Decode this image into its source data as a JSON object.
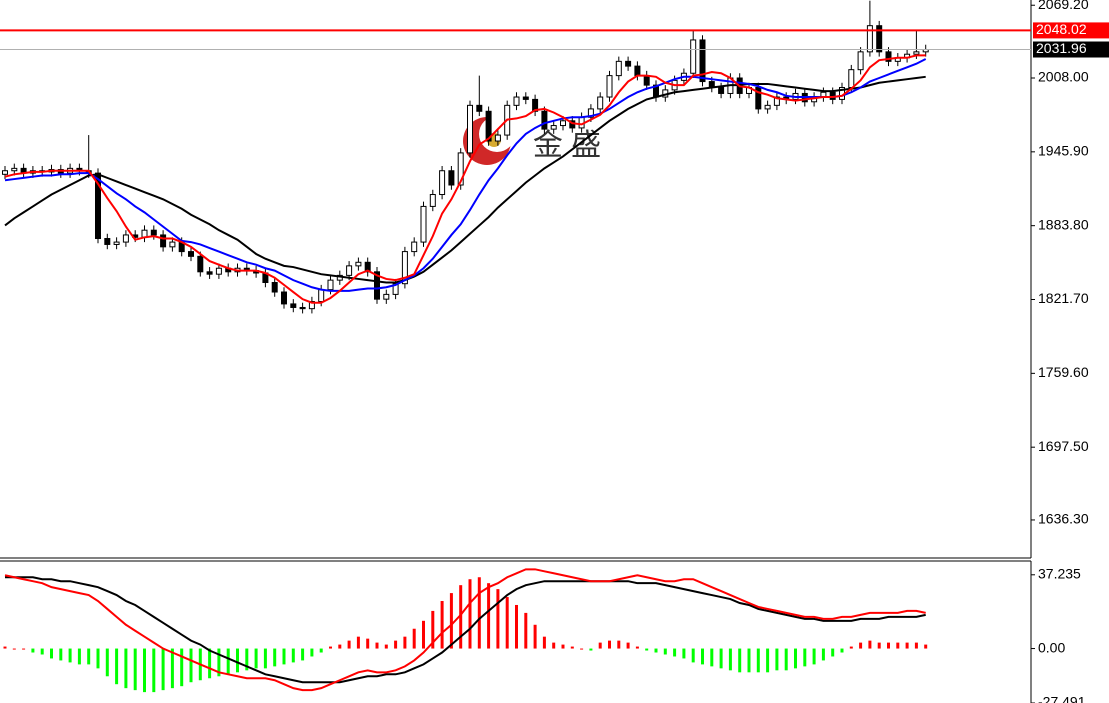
{
  "chart_data": [
    {
      "type": "candlestick",
      "watermark": "金 盛",
      "ylim": [
        1604.3,
        2073.6
      ],
      "yticks": [
        {
          "value": 2069.2,
          "label": "2069.20"
        },
        {
          "value": 2008,
          "label": "2008.00"
        },
        {
          "value": 1945.9,
          "label": "1945.90"
        },
        {
          "value": 1883.8,
          "label": "1883.80"
        },
        {
          "value": 1821.7,
          "label": "1821.70"
        },
        {
          "value": 1759.6,
          "label": "1759.60"
        },
        {
          "value": 1697.5,
          "label": "1697.50"
        },
        {
          "value": 1636.3,
          "label": "1636.30"
        }
      ],
      "up_color": "#ffffff",
      "down_color": "#000000",
      "outline_color": "#000000",
      "open": [
        1927,
        1930,
        1932,
        1928,
        1930,
        1929,
        1931,
        1928,
        1932,
        1930,
        1928,
        1873,
        1868,
        1870,
        1876,
        1874,
        1880,
        1876,
        1866,
        1870,
        1862,
        1858,
        1845,
        1843,
        1848,
        1845,
        1848,
        1846,
        1844,
        1836,
        1828,
        1818,
        1815,
        1814,
        1820,
        1830,
        1838,
        1842,
        1850,
        1853,
        1845,
        1822,
        1826,
        1835,
        1862,
        1870,
        1900,
        1910,
        1930,
        1918,
        1945,
        1985,
        1980,
        1955,
        1960,
        1985,
        1992,
        1990,
        1980,
        1965,
        1968,
        1972,
        1966,
        1975,
        1982,
        1992,
        2010,
        2022,
        2018,
        2010,
        2002,
        1992,
        1998,
        2006,
        2012,
        2040,
        2005,
        2000,
        1995,
        2008,
        1995,
        2000,
        1982,
        1985,
        1992,
        1990,
        1995,
        1988,
        1992,
        1996,
        1990,
        2000,
        2015,
        2030,
        2052,
        2030,
        2022,
        2025,
        2028,
        2030
      ],
      "high": [
        1934,
        1936,
        1936,
        1934,
        1934,
        1935,
        1935,
        1936,
        1936,
        1960,
        1932,
        1877,
        1874,
        1880,
        1880,
        1884,
        1884,
        1880,
        1874,
        1874,
        1866,
        1862,
        1849,
        1852,
        1852,
        1852,
        1852,
        1850,
        1848,
        1840,
        1832,
        1822,
        1819,
        1824,
        1834,
        1842,
        1846,
        1854,
        1857,
        1857,
        1849,
        1830,
        1839,
        1866,
        1874,
        1904,
        1914,
        1934,
        1934,
        1949,
        1989,
        2010,
        1984,
        1964,
        1989,
        1996,
        1996,
        1994,
        1984,
        1972,
        1976,
        1976,
        1979,
        1986,
        1996,
        2014,
        2026,
        2026,
        2022,
        2014,
        2006,
        2002,
        2010,
        2016,
        2048,
        2044,
        2009,
        2004,
        2012,
        2012,
        2004,
        2004,
        1989,
        1996,
        1996,
        1999,
        1999,
        1996,
        2000,
        2000,
        2004,
        2019,
        2034,
        2073,
        2056,
        2034,
        2029,
        2032,
        2048,
        2036
      ],
      "low": [
        1923,
        1926,
        1924,
        1924,
        1925,
        1925,
        1924,
        1924,
        1926,
        1924,
        1869,
        1864,
        1864,
        1866,
        1870,
        1870,
        1872,
        1862,
        1862,
        1858,
        1854,
        1841,
        1839,
        1839,
        1841,
        1841,
        1842,
        1840,
        1832,
        1824,
        1814,
        1811,
        1810,
        1810,
        1816,
        1826,
        1834,
        1838,
        1846,
        1841,
        1818,
        1818,
        1822,
        1831,
        1858,
        1866,
        1896,
        1906,
        1914,
        1914,
        1941,
        1976,
        1951,
        1951,
        1956,
        1981,
        1986,
        1976,
        1961,
        1961,
        1964,
        1962,
        1962,
        1971,
        1978,
        1988,
        2006,
        2014,
        2006,
        1998,
        1988,
        1988,
        1994,
        2002,
        2008,
        2001,
        1996,
        1991,
        1991,
        1991,
        1991,
        1978,
        1978,
        1981,
        1986,
        1986,
        1984,
        1984,
        1988,
        1986,
        1986,
        1996,
        2011,
        2026,
        2026,
        2018,
        2018,
        2021,
        2024,
        2026
      ],
      "close": [
        1930,
        1932,
        1928,
        1930,
        1929,
        1931,
        1928,
        1932,
        1930,
        1928,
        1873,
        1868,
        1870,
        1876,
        1874,
        1880,
        1876,
        1866,
        1870,
        1862,
        1858,
        1845,
        1843,
        1848,
        1845,
        1848,
        1846,
        1844,
        1836,
        1828,
        1818,
        1815,
        1814,
        1820,
        1830,
        1838,
        1842,
        1850,
        1853,
        1845,
        1822,
        1826,
        1835,
        1862,
        1870,
        1900,
        1910,
        1930,
        1918,
        1945,
        1985,
        1980,
        1955,
        1960,
        1985,
        1992,
        1990,
        1980,
        1965,
        1968,
        1972,
        1966,
        1975,
        1982,
        1992,
        2010,
        2022,
        2018,
        2010,
        2002,
        1992,
        1998,
        2006,
        2012,
        2040,
        2005,
        2000,
        1995,
        2008,
        1995,
        2000,
        1982,
        1985,
        1992,
        1990,
        1995,
        1988,
        1992,
        1996,
        1990,
        2000,
        2015,
        2030,
        2052,
        2030,
        2022,
        2025,
        2028,
        2030,
        2031.96
      ],
      "lines": [
        {
          "color": "#000000",
          "values": [
            1884,
            1890,
            1895,
            1900,
            1905,
            1910,
            1914,
            1918,
            1922,
            1926,
            1927,
            1924,
            1921,
            1918,
            1915,
            1912,
            1909,
            1906,
            1902,
            1898,
            1893,
            1889,
            1885,
            1880,
            1876,
            1872,
            1866,
            1860,
            1856,
            1853,
            1850,
            1849,
            1847,
            1845,
            1843,
            1842,
            1841,
            1840,
            1839,
            1838,
            1837,
            1836,
            1836,
            1838,
            1841,
            1845,
            1851,
            1857,
            1863,
            1870,
            1877,
            1884,
            1891,
            1899,
            1906,
            1913,
            1920,
            1926,
            1932,
            1937,
            1942,
            1948,
            1954,
            1960,
            1966,
            1972,
            1977,
            1982,
            1986,
            1990,
            1992,
            1994,
            1996,
            1997,
            1998,
            1999,
            2000,
            2001,
            2002,
            2002,
            2003,
            2003,
            2003,
            2002,
            2001,
            2000,
            1999,
            1998,
            1997,
            1997,
            1998,
            1999,
            2000,
            2002,
            2004,
            2005,
            2006,
            2007,
            2008,
            2009
          ]
        },
        {
          "color": "#0000ff",
          "values": [
            1922,
            1923,
            1924,
            1925,
            1926,
            1926,
            1927,
            1927,
            1928,
            1928,
            1923,
            1917,
            1911,
            1906,
            1900,
            1895,
            1889,
            1883,
            1877,
            1871,
            1870,
            1868,
            1865,
            1862,
            1859,
            1856,
            1853,
            1851,
            1848,
            1846,
            1842,
            1838,
            1835,
            1832,
            1830,
            1829,
            1829,
            1829,
            1830,
            1831,
            1831,
            1832,
            1834,
            1838,
            1842,
            1848,
            1856,
            1866,
            1876,
            1885,
            1897,
            1910,
            1922,
            1932,
            1943,
            1953,
            1961,
            1966,
            1970,
            1972,
            1974,
            1975,
            1975,
            1976,
            1978,
            1982,
            1987,
            1992,
            1996,
            1999,
            2001,
            2004,
            2007,
            2009,
            2009,
            2008,
            2007,
            2006,
            2005,
            2004,
            2003,
            2001,
            1998,
            1996,
            1993,
            1992,
            1992,
            1992,
            1992,
            1992,
            1993,
            1996,
            2000,
            2005,
            2008,
            2011,
            2014,
            2017,
            2020,
            2024
          ]
        },
        {
          "color": "#ff0000",
          "values": [
            1925,
            1927,
            1928,
            1929,
            1929,
            1930,
            1930,
            1930,
            1930,
            1930,
            1919,
            1907,
            1896,
            1883,
            1872,
            1874,
            1875,
            1873,
            1873,
            1870,
            1866,
            1860,
            1854,
            1851,
            1848,
            1846,
            1846,
            1846,
            1844,
            1840,
            1834,
            1828,
            1822,
            1819,
            1819,
            1823,
            1829,
            1836,
            1843,
            1846,
            1842,
            1839,
            1838,
            1840,
            1843,
            1859,
            1875,
            1894,
            1906,
            1921,
            1938,
            1952,
            1957,
            1965,
            1973,
            1974,
            1976,
            1981,
            1982,
            1979,
            1975,
            1970,
            1969,
            1973,
            1977,
            1985,
            1996,
            2005,
            2010,
            2010,
            2009,
            2004,
            2002,
            2002,
            2010,
            2011,
            2013,
            2012,
            2008,
            2001,
            2000,
            1996,
            1994,
            1991,
            1990,
            1989,
            1990,
            1991,
            1992,
            1992,
            1993,
            1999,
            2006,
            2017,
            2023,
            2024,
            2025,
            2025,
            2027,
            2027
          ]
        }
      ],
      "price_lines": [
        {
          "value": 2048.02,
          "color": "#ff0000",
          "label_color": "#ffffff"
        },
        {
          "value": 2031.96,
          "color": "#000000",
          "label_color": "#ffffff"
        }
      ]
    },
    {
      "type": "macd",
      "ylim": [
        -27.491,
        44.2
      ],
      "yticks": [
        37.235,
        {
          "value": 0,
          "label": "0.00"
        },
        -27.491
      ],
      "hist_up_color": "#ff0000",
      "hist_down_color": "#00ff00",
      "histogram": [
        1,
        0,
        0,
        -2,
        -3,
        -5,
        -6,
        -7,
        -8,
        -8,
        -10,
        -14,
        -18,
        -20,
        -21,
        -22,
        -22,
        -21,
        -20,
        -19,
        -17,
        -16,
        -15,
        -14,
        -13,
        -12,
        -11,
        -10,
        -10,
        -9,
        -8,
        -7,
        -6,
        -4,
        -2,
        1,
        2,
        4,
        6,
        5,
        3,
        2,
        4,
        6,
        10,
        14,
        19,
        24,
        28,
        32,
        35,
        36,
        33,
        30,
        26,
        22,
        18,
        12,
        6,
        3,
        2,
        1,
        0,
        -1,
        3,
        4,
        4,
        3,
        1,
        -1,
        -2,
        -3,
        -4,
        -5,
        -7,
        -8,
        -9,
        -10,
        -11,
        -12,
        -12,
        -12,
        -12,
        -11,
        -11,
        -10,
        -9,
        -8,
        -6,
        -4,
        -2,
        1,
        3,
        4,
        3,
        3,
        3,
        3,
        3,
        2
      ],
      "lines": [
        {
          "color": "#000000",
          "values": [
            36,
            36,
            36,
            36,
            35,
            35,
            34,
            34,
            33,
            32,
            31,
            29,
            27,
            24,
            22,
            19,
            16,
            13,
            10,
            7,
            4,
            2,
            -1,
            -3,
            -5,
            -7,
            -9,
            -11,
            -13,
            -14,
            -15,
            -16,
            -17,
            -17,
            -17,
            -17,
            -17,
            -16,
            -15,
            -14,
            -14,
            -13,
            -13,
            -12,
            -10,
            -8,
            -5,
            -2,
            2,
            6,
            10,
            15,
            19,
            23,
            27,
            30,
            32,
            33,
            34,
            34,
            34,
            34,
            34,
            34,
            34,
            34,
            34,
            34,
            33,
            33,
            33,
            32,
            31,
            30,
            29,
            28,
            27,
            26,
            25,
            23,
            22,
            20,
            19,
            18,
            17,
            16,
            15,
            15,
            14,
            14,
            14,
            14,
            15,
            15,
            15,
            16,
            16,
            16,
            16,
            17
          ]
        },
        {
          "color": "#ff0000",
          "values": [
            37,
            36,
            35,
            34,
            33,
            31,
            30,
            29,
            28,
            27,
            24,
            20,
            16,
            12,
            9,
            6,
            3,
            0,
            -2,
            -4,
            -6,
            -8,
            -10,
            -12,
            -13,
            -14,
            -15,
            -15,
            -15,
            -16,
            -18,
            -20,
            -21,
            -21,
            -20,
            -18,
            -16,
            -14,
            -12,
            -11,
            -12,
            -12,
            -11,
            -9,
            -6,
            -2,
            3,
            8,
            12,
            17,
            23,
            28,
            31,
            33,
            36,
            38,
            40,
            40,
            39,
            38,
            37,
            36,
            35,
            34,
            34,
            34,
            35,
            36,
            37,
            36,
            35,
            34,
            34,
            35,
            35,
            33,
            31,
            29,
            27,
            25,
            23,
            21,
            20,
            19,
            18,
            17,
            16,
            16,
            15,
            15,
            16,
            16,
            17,
            18,
            18,
            18,
            18,
            19,
            19,
            18
          ]
        }
      ]
    }
  ]
}
